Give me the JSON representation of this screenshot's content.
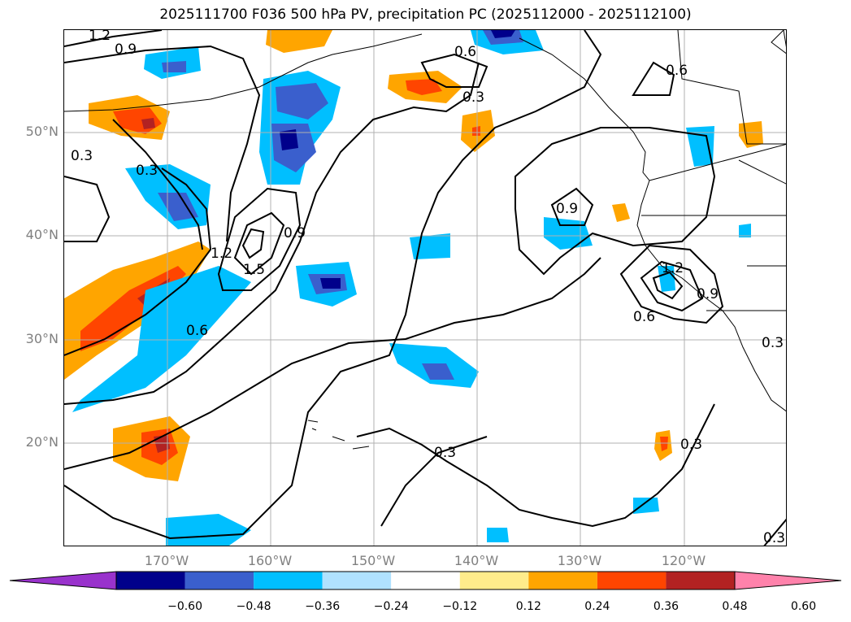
{
  "title": "2025111700 F036 500 hPa PV, precipitation PC (2025112000 - 2025112100)",
  "lat_labels": [
    "50°N",
    "40°N",
    "30°N",
    "20°N"
  ],
  "lon_labels": [
    "170°W",
    "160°W",
    "150°W",
    "140°W",
    "130°W",
    "120°W"
  ],
  "contour_labels": [
    "1.2",
    "0.9",
    "0.6",
    "0.3",
    "0.3",
    "0.3",
    "0.9",
    "1.2",
    "1.5",
    "0.9",
    "0.6",
    "0.9",
    "1.2",
    "0.9",
    "0.6",
    "0.3",
    "0.6",
    "0.3",
    "0.3",
    "0.3"
  ],
  "colorbar": {
    "ticks": [
      "−0.60",
      "−0.48",
      "−0.36",
      "−0.24",
      "−0.12",
      "0.12",
      "0.24",
      "0.36",
      "0.48",
      "0.60"
    ],
    "colors": [
      "#9932cc",
      "#00008b",
      "#3a5fcd",
      "#00bfff",
      "#b0e2ff",
      "#ffffff",
      "#ffec8b",
      "#ffa500",
      "#ff4500",
      "#b22222",
      "#ff82ab"
    ]
  }
}
